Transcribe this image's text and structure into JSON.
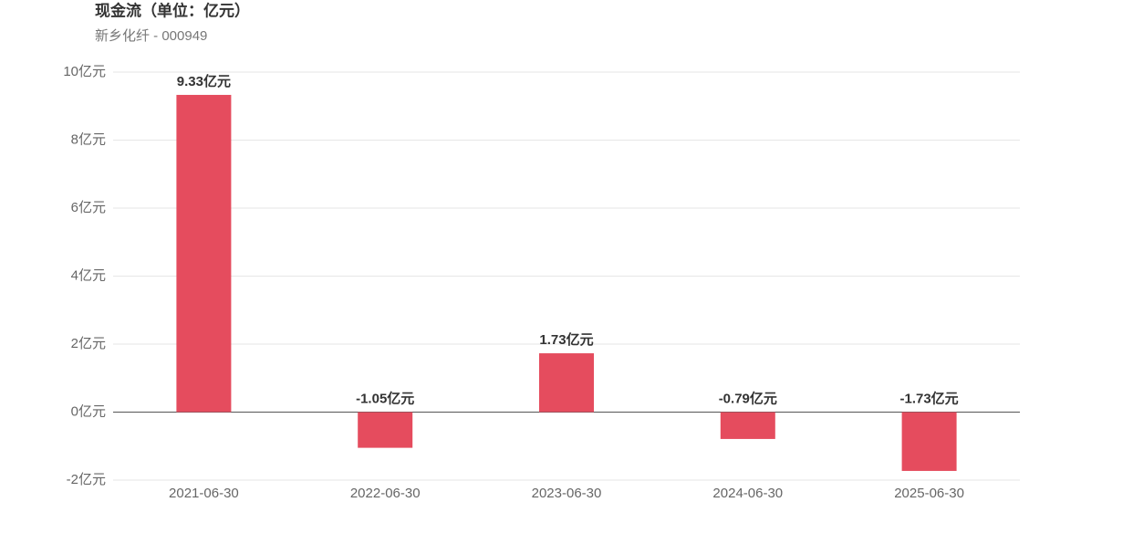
{
  "chart_data": {
    "type": "bar",
    "title": "现金流（单位：亿元）",
    "subtitle": "新乡化纤 - 000949",
    "categories": [
      "2021-06-30",
      "2022-06-30",
      "2023-06-30",
      "2024-06-30",
      "2025-06-30"
    ],
    "values": [
      9.33,
      -1.05,
      1.73,
      -0.79,
      -1.73
    ],
    "value_labels": [
      "9.33亿元",
      "-1.05亿元",
      "1.73亿元",
      "-0.79亿元",
      "-1.73亿元"
    ],
    "color": "#e54c5e",
    "ylim": [
      -2,
      10
    ],
    "yticks": [
      {
        "value": -2,
        "label": "-2亿元"
      },
      {
        "value": 0,
        "label": "0亿元"
      },
      {
        "value": 2,
        "label": "2亿元"
      },
      {
        "value": 4,
        "label": "4亿元"
      },
      {
        "value": 6,
        "label": "6亿元"
      },
      {
        "value": 8,
        "label": "8亿元"
      },
      {
        "value": 10,
        "label": "10亿元"
      }
    ],
    "grid": true
  }
}
